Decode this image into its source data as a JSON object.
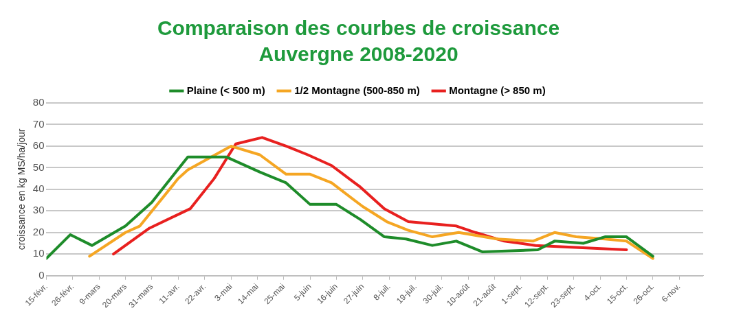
{
  "chart_data": {
    "type": "line",
    "title": "Comparaison des courbes de croissance",
    "subtitle": "Auvergne 2008-2020",
    "ylabel": "croissance en kg MS/ha/jour",
    "xlim": [
      "--02-15",
      "--11-16"
    ],
    "xticks": [
      {
        "value": "--02-15",
        "label": "15-févr."
      },
      {
        "value": "--02-26",
        "label": "26-févr."
      },
      {
        "value": "--03-09",
        "label": "9-mars"
      },
      {
        "value": "--03-20",
        "label": "20-mars"
      },
      {
        "value": "--03-31",
        "label": "31-mars"
      },
      {
        "value": "--04-11",
        "label": "11-avr."
      },
      {
        "value": "--04-22",
        "label": "22-avr."
      },
      {
        "value": "--05-03",
        "label": "3-mai"
      },
      {
        "value": "--05-14",
        "label": "14-mai"
      },
      {
        "value": "--05-25",
        "label": "25-mai"
      },
      {
        "value": "--06-05",
        "label": "5-juin"
      },
      {
        "value": "--06-16",
        "label": "16-juin"
      },
      {
        "value": "--06-27",
        "label": "27-juin"
      },
      {
        "value": "--07-08",
        "label": "8-juil."
      },
      {
        "value": "--07-19",
        "label": "19-juil."
      },
      {
        "value": "--07-30",
        "label": "30-juil."
      },
      {
        "value": "--08-10",
        "label": "10-août"
      },
      {
        "value": "--08-21",
        "label": "21-août"
      },
      {
        "value": "--09-01",
        "label": "1-sept."
      },
      {
        "value": "--09-12",
        "label": "12-sept."
      },
      {
        "value": "--09-23",
        "label": "23-sept."
      },
      {
        "value": "--10-04",
        "label": "4-oct."
      },
      {
        "value": "--10-15",
        "label": "15-oct."
      },
      {
        "value": "--10-26",
        "label": "26-oct."
      },
      {
        "value": "--11-06",
        "label": "6-nov."
      }
    ],
    "ylim": [
      0,
      80
    ],
    "yticks": [
      0,
      10,
      20,
      30,
      40,
      50,
      60,
      70,
      80
    ],
    "grid": "y",
    "legend": "top",
    "marker": "none",
    "line_style": "solid",
    "series": [
      {
        "name": "Plaine (< 500 m)",
        "color": "#1e8c2a",
        "x": [
          "--02-15",
          "--02-25",
          "--03-06",
          "--03-20",
          "--03-31",
          "--04-15",
          "--05-01",
          "--05-15",
          "--05-26",
          "--06-05",
          "--06-16",
          "--06-26",
          "--07-06",
          "--07-15",
          "--07-26",
          "--08-05",
          "--08-16",
          "--09-08",
          "--09-15",
          "--09-27",
          "--10-06",
          "--10-15",
          "--10-26"
        ],
        "values": [
          8,
          19,
          14,
          23,
          34,
          55,
          55,
          48,
          43,
          33,
          33,
          26,
          18,
          17,
          14,
          16,
          11,
          12,
          16,
          15,
          18,
          18,
          9
        ]
      },
      {
        "name": "1/2 Montagne (500-850 m)",
        "color": "#f5a623",
        "x": [
          "--03-05",
          "--03-20",
          "--03-26",
          "--04-11",
          "--04-15",
          "--05-03",
          "--05-15",
          "--05-26",
          "--06-05",
          "--06-14",
          "--06-27",
          "--07-07",
          "--07-16",
          "--07-26",
          "--08-06",
          "--08-22",
          "--09-06",
          "--09-15",
          "--09-24",
          "--10-06",
          "--10-15",
          "--10-26"
        ],
        "values": [
          9,
          20,
          23,
          45,
          49,
          60,
          56,
          47,
          47,
          43,
          32,
          25,
          21,
          18,
          20,
          17,
          16,
          20,
          18,
          17,
          16,
          8
        ]
      },
      {
        "name": "Montagne (> 850 m)",
        "color": "#e8201f",
        "x": [
          "--03-15",
          "--03-30",
          "--04-16",
          "--04-26",
          "--05-05",
          "--05-16",
          "--05-26",
          "--06-04",
          "--06-14",
          "--06-26",
          "--07-06",
          "--07-16",
          "--08-05",
          "--08-13",
          "--08-25",
          "--09-07",
          "--10-15"
        ],
        "values": [
          10,
          22,
          31,
          45,
          61,
          64,
          60,
          56,
          51,
          41,
          31,
          25,
          23,
          20,
          16,
          14,
          12
        ]
      }
    ]
  }
}
